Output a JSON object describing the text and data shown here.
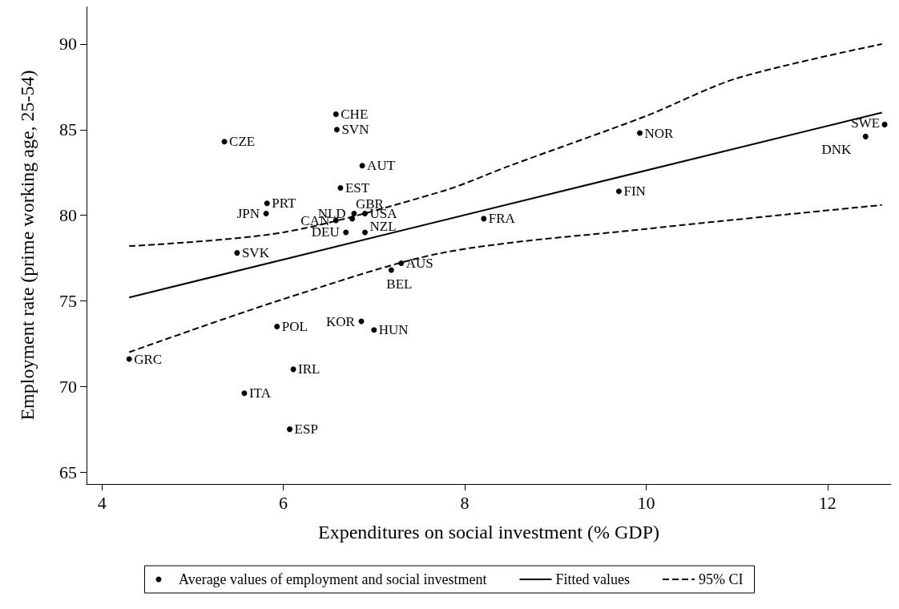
{
  "chart_data": {
    "type": "scatter",
    "xlabel": "Expenditures on social investment (% GDP)",
    "ylabel": "Employment rate (prime working age, 25-54)",
    "xlim": [
      3.83,
      12.7
    ],
    "ylim": [
      64.3,
      92.2
    ],
    "xticks": [
      4,
      6,
      8,
      10,
      12
    ],
    "yticks": [
      65,
      70,
      75,
      80,
      85,
      90
    ],
    "grid": false,
    "legend": "bottom",
    "marker": "circle",
    "series": [
      {
        "name": "Average values of employment and social investment",
        "color": "#000000",
        "x": [
          6.58,
          6.59,
          5.35,
          6.87,
          6.63,
          5.82,
          5.81,
          6.58,
          6.76,
          6.78,
          6.9,
          6.69,
          6.9,
          5.49,
          7.3,
          7.19,
          5.93,
          6.86,
          7.0,
          4.3,
          6.11,
          5.57,
          6.07,
          12.63,
          12.42,
          9.93,
          9.7,
          8.21
        ],
        "values": [
          85.9,
          85.0,
          84.3,
          82.9,
          81.6,
          80.7,
          80.1,
          79.7,
          79.8,
          80.1,
          80.1,
          79.0,
          79.0,
          77.8,
          77.2,
          76.8,
          73.5,
          73.8,
          73.3,
          71.6,
          71.0,
          69.6,
          67.5,
          85.3,
          84.6,
          84.8,
          81.4,
          79.8
        ]
      },
      {
        "name": "Fitted values",
        "type": "line",
        "color": "#000000",
        "line_style": "solid",
        "marker": "none",
        "x": [
          4.3,
          12.6
        ],
        "values": [
          75.2,
          86.0
        ]
      },
      {
        "name": "95% CI",
        "type": "line",
        "color": "#000000",
        "line_style": "dashed",
        "marker": "none",
        "x": [
          4.3,
          6,
          7.75,
          8.5,
          10,
          11,
          12.6
        ],
        "values": [
          78.2,
          79.0,
          81.4,
          82.9,
          85.8,
          88.0,
          90.0
        ]
      },
      {
        "type": "line",
        "color": "#000000",
        "line_style": "dashed",
        "marker": "none",
        "x": [
          4.3,
          6,
          7.75,
          10,
          12.6
        ],
        "values": [
          72.0,
          75.1,
          77.8,
          79.2,
          80.6
        ]
      }
    ],
    "annotations": [
      {
        "text": "CHE",
        "x": 6.58,
        "y": 85.9
      },
      {
        "text": "SVN",
        "x": 6.59,
        "y": 85.0
      },
      {
        "text": "CZE",
        "x": 5.35,
        "y": 84.3
      },
      {
        "text": "AUT",
        "x": 6.87,
        "y": 82.9
      },
      {
        "text": "EST",
        "x": 6.63,
        "y": 81.6
      },
      {
        "text": "PRT",
        "x": 5.82,
        "y": 80.7
      },
      {
        "text": "JPN",
        "x": 5.81,
        "y": 80.1
      },
      {
        "text": "CAN",
        "x": 6.58,
        "y": 79.7
      },
      {
        "text": "NLD",
        "x": 6.76,
        "y": 79.8
      },
      {
        "text": "GBR",
        "x": 6.78,
        "y": 80.1
      },
      {
        "text": "USA",
        "x": 6.9,
        "y": 80.1
      },
      {
        "text": "DEU",
        "x": 6.69,
        "y": 79.0
      },
      {
        "text": "NZL",
        "x": 6.9,
        "y": 79.0
      },
      {
        "text": "SVK",
        "x": 5.49,
        "y": 77.8
      },
      {
        "text": "AUS",
        "x": 7.3,
        "y": 77.2
      },
      {
        "text": "BEL",
        "x": 7.19,
        "y": 76.8
      },
      {
        "text": "POL",
        "x": 5.93,
        "y": 73.5
      },
      {
        "text": "KOR",
        "x": 6.86,
        "y": 73.8
      },
      {
        "text": "HUN",
        "x": 7.0,
        "y": 73.3
      },
      {
        "text": "GRC",
        "x": 4.3,
        "y": 71.6
      },
      {
        "text": "IRL",
        "x": 6.11,
        "y": 71.0
      },
      {
        "text": "ITA",
        "x": 5.57,
        "y": 69.6
      },
      {
        "text": "ESP",
        "x": 6.07,
        "y": 67.5
      },
      {
        "text": "SWE",
        "x": 12.63,
        "y": 85.3
      },
      {
        "text": "DNK",
        "x": 12.42,
        "y": 84.6
      },
      {
        "text": "NOR",
        "x": 9.93,
        "y": 84.8
      },
      {
        "text": "FIN",
        "x": 9.7,
        "y": 81.4
      },
      {
        "text": "FRA",
        "x": 8.21,
        "y": 79.8
      }
    ]
  }
}
